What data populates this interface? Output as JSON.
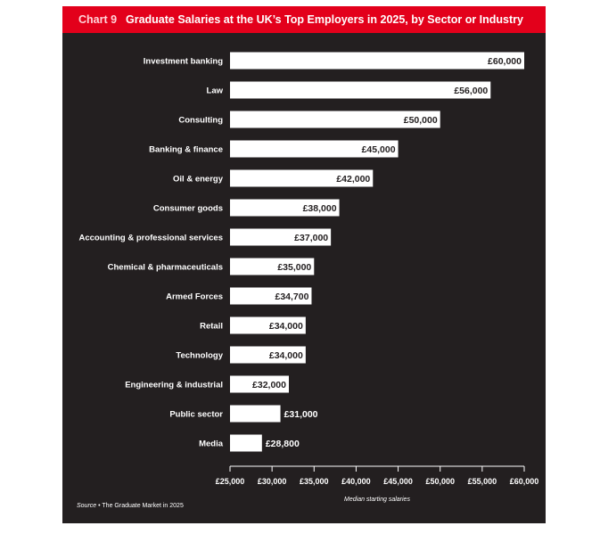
{
  "header": {
    "chart_number": "Chart 9",
    "title": "Graduate Salaries at the UK’s Top Employers in 2025, by Sector or Industry"
  },
  "source": {
    "label": "Source",
    "separator": " • ",
    "text": "The Graduate Market in 2025"
  },
  "colors": {
    "panel_background": "#231f20",
    "title_background": "#e3001b",
    "bar_fill": "#ffffff",
    "text": "#ffffff",
    "bar_label_text": "#231f20"
  },
  "chart_data": {
    "type": "bar",
    "orientation": "horizontal",
    "title": "Graduate Salaries at the UK’s Top Employers in 2025, by Sector or Industry",
    "xlabel": "Median starting salaries",
    "ylabel": "",
    "xlim": [
      25000,
      60000
    ],
    "grid": false,
    "categories": [
      "Investment banking",
      "Law",
      "Consulting",
      "Banking & finance",
      "Oil & energy",
      "Consumer goods",
      "Accounting & professional services",
      "Chemical & pharmaceuticals",
      "Armed Forces",
      "Retail",
      "Technology",
      "Engineering & industrial",
      "Public sector",
      "Media"
    ],
    "values": [
      60000,
      56000,
      50000,
      45000,
      42000,
      38000,
      37000,
      35000,
      34700,
      34000,
      34000,
      32000,
      31000,
      28800
    ],
    "value_labels": [
      "£60,000",
      "£56,000",
      "£50,000",
      "£45,000",
      "£42,000",
      "£38,000",
      "£37,000",
      "£35,000",
      "£34,700",
      "£34,000",
      "£34,000",
      "£32,000",
      "£31,000",
      "£28,800"
    ],
    "x_ticks": [
      25000,
      30000,
      35000,
      40000,
      45000,
      50000,
      55000,
      60000
    ],
    "x_tick_labels": [
      "£25,000",
      "£30,000",
      "£35,000",
      "£40,000",
      "£45,000",
      "£50,000",
      "£55,000",
      "£60,000"
    ]
  }
}
